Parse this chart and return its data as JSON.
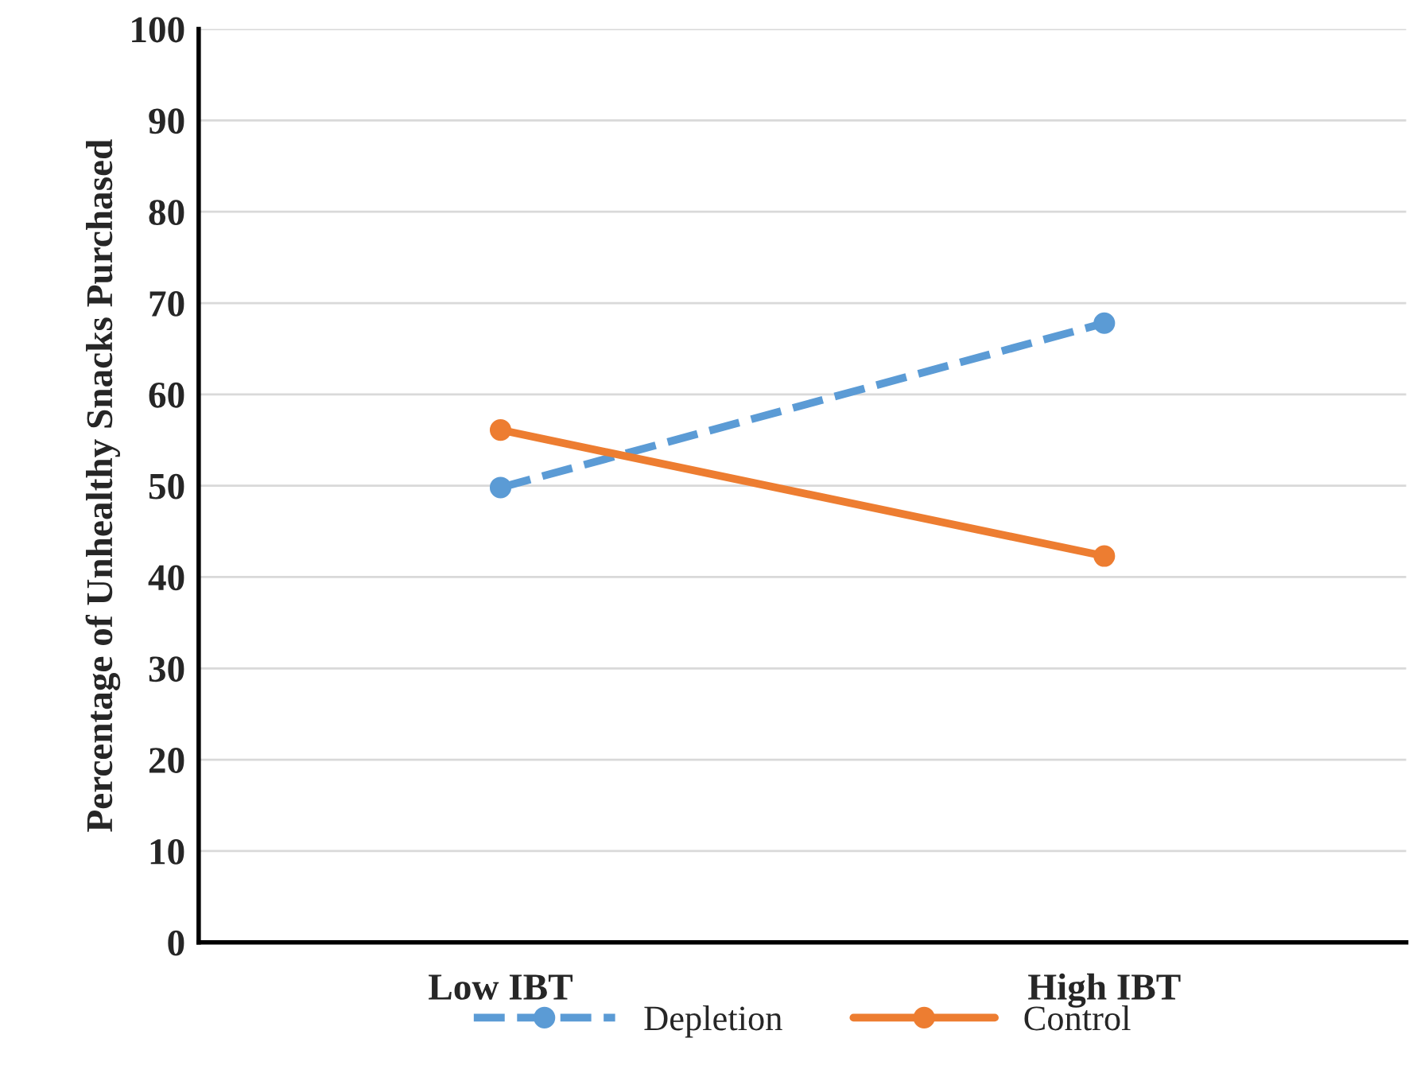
{
  "chart_data": {
    "type": "line",
    "ylabel": "Percentage of Unhealthy Snacks Purchased",
    "categories": [
      "Low IBT",
      "High IBT"
    ],
    "series": [
      {
        "name": "Depletion",
        "color": "#5b9bd5",
        "values": [
          49.8,
          67.8
        ],
        "line_style": "dashed"
      },
      {
        "name": "Control",
        "color": "#ed7d31",
        "values": [
          56.1,
          42.3
        ],
        "line_style": "solid"
      }
    ],
    "ylim": [
      0,
      100
    ],
    "yticks": [
      0,
      10,
      20,
      30,
      40,
      50,
      60,
      70,
      80,
      90,
      100
    ],
    "grid": "y",
    "legend": "bottom",
    "marker": "circle"
  }
}
